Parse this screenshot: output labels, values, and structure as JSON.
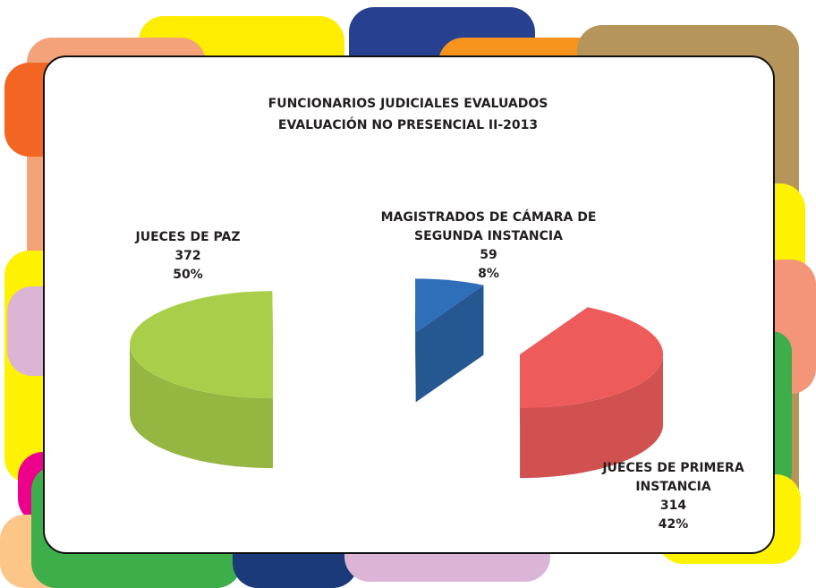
{
  "chart_data": {
    "type": "pie3d",
    "title": "FUNCIONARIOS JUDICIALES EVALUADOS",
    "subtitle": "EVALUACIÓN NO PRESENCIAL II-2013",
    "categories": [
      "JUECES DE PAZ",
      "MAGISTRADOS DE CÁMARA DE SEGUNDA INSTANCIA",
      "JUECES DE PRIMERA INSTANCIA"
    ],
    "values": [
      372,
      59,
      314
    ],
    "percent_labels": [
      "50%",
      "8%",
      "42%"
    ],
    "colors": [
      "#a9cf4a",
      "#2f6fba",
      "#ee5b5b"
    ]
  }
}
